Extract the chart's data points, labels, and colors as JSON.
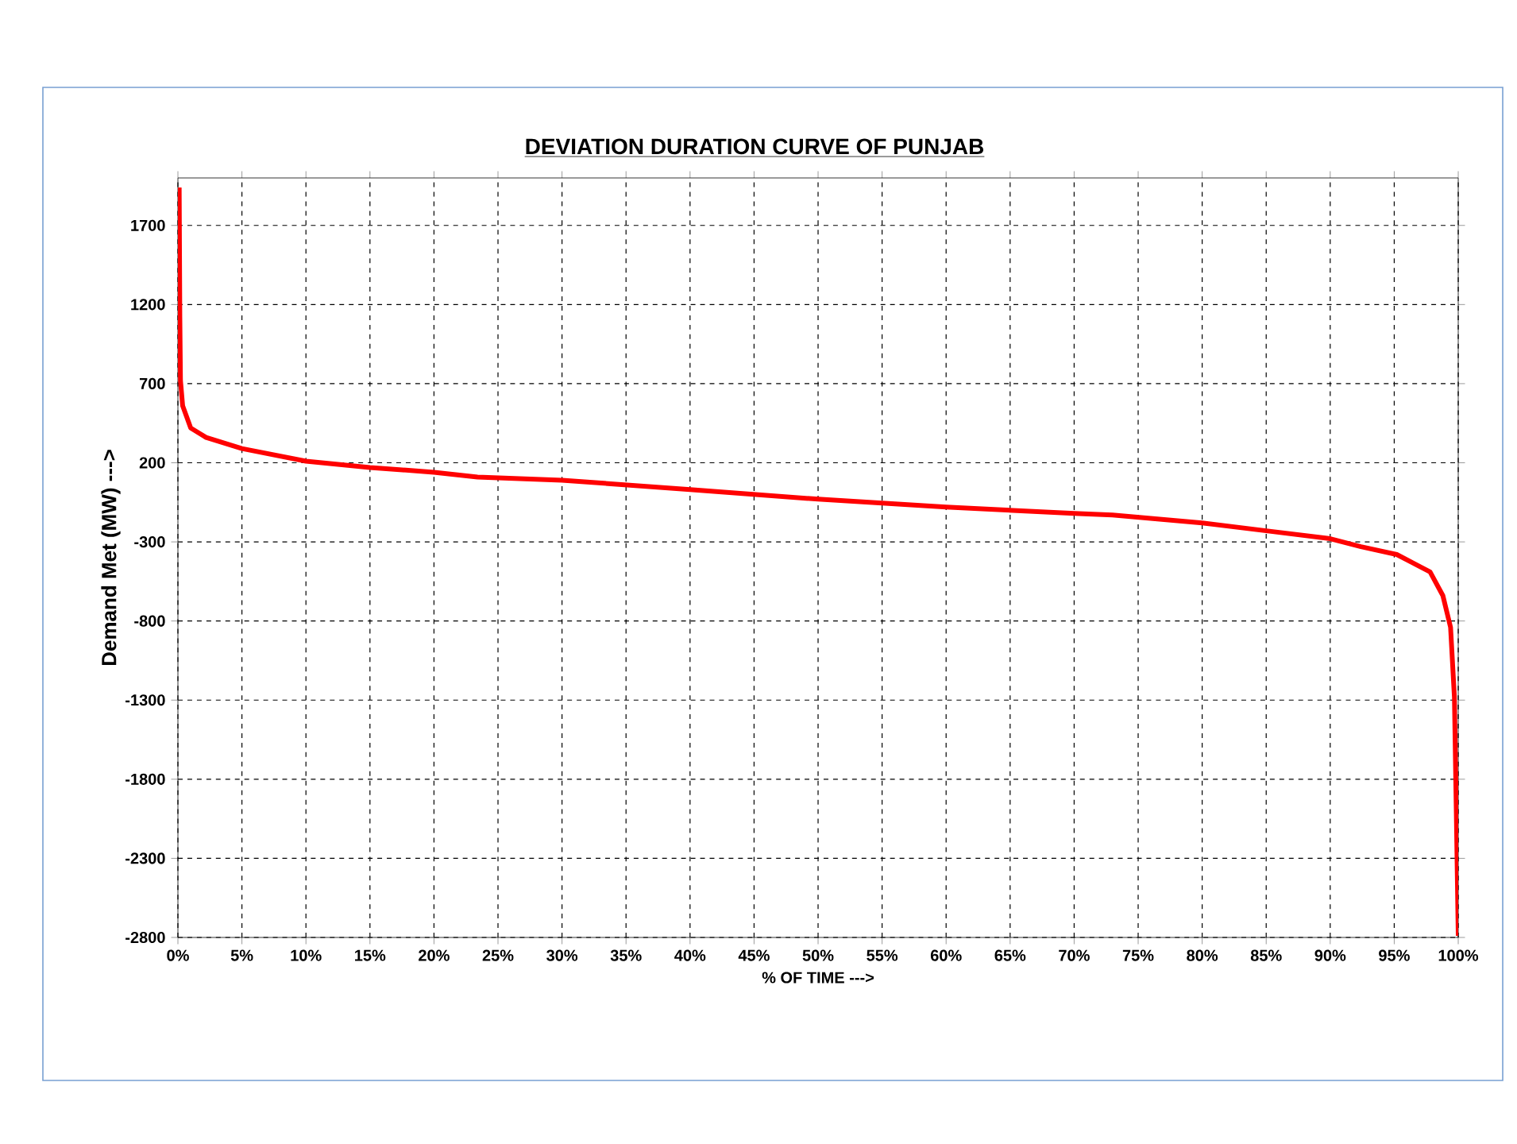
{
  "chart_data": {
    "type": "line",
    "title": "DEVIATION  DURATION  CURVE  OF  PUNJAB",
    "xlabel": "% OF TIME --->",
    "ylabel": "Demand Met (MW) --->",
    "x": [
      0.1,
      0.15,
      0.2,
      0.37,
      1.0,
      2.2,
      5,
      10,
      15,
      20,
      23.4,
      30,
      40,
      50,
      60,
      70,
      73,
      80,
      85,
      90,
      92.4,
      95.2,
      97.8,
      98.8,
      99.4,
      99.7,
      99.85,
      100
    ],
    "series": [
      {
        "color": "#ff0000",
        "values": [
          1940,
          1120,
          720,
          560,
          420,
          360,
          290,
          210,
          170,
          140,
          110,
          90,
          30,
          -30,
          -80,
          -120,
          -130,
          -180,
          -230,
          -280,
          -330,
          -380,
          -490,
          -640,
          -840,
          -1280,
          -2010,
          -2790
        ]
      }
    ],
    "xlim": [
      0,
      100
    ],
    "ylim": [
      -2800,
      2000
    ],
    "xticks": [
      {
        "value": 0,
        "label": "0%"
      },
      {
        "value": 5,
        "label": "5%"
      },
      {
        "value": 10,
        "label": "10%"
      },
      {
        "value": 15,
        "label": "15%"
      },
      {
        "value": 20,
        "label": "20%"
      },
      {
        "value": 25,
        "label": "25%"
      },
      {
        "value": 30,
        "label": "30%"
      },
      {
        "value": 35,
        "label": "35%"
      },
      {
        "value": 40,
        "label": "40%"
      },
      {
        "value": 45,
        "label": "45%"
      },
      {
        "value": 50,
        "label": "50%"
      },
      {
        "value": 55,
        "label": "55%"
      },
      {
        "value": 60,
        "label": "60%"
      },
      {
        "value": 65,
        "label": "65%"
      },
      {
        "value": 70,
        "label": "70%"
      },
      {
        "value": 75,
        "label": "75%"
      },
      {
        "value": 80,
        "label": "80%"
      },
      {
        "value": 85,
        "label": "85%"
      },
      {
        "value": 90,
        "label": "90%"
      },
      {
        "value": 95,
        "label": "95%"
      },
      {
        "value": 100,
        "label": "100%"
      }
    ],
    "yticks": [
      -2800,
      -2300,
      -1800,
      -1300,
      -800,
      -300,
      200,
      700,
      1200,
      1700
    ],
    "grid": true,
    "line_style": "solid"
  }
}
